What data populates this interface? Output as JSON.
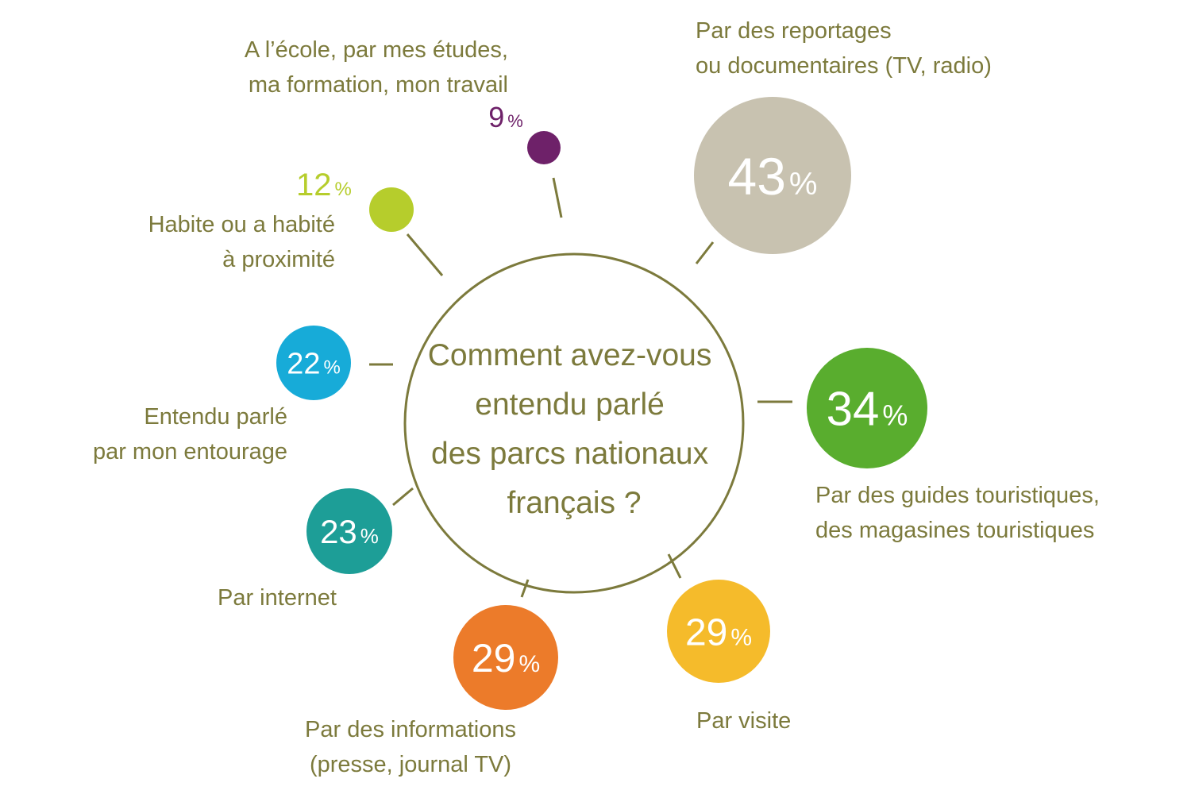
{
  "chart_data": {
    "type": "bubble",
    "title": "",
    "center_question": [
      "Comment avez-vous",
      "entendu parlé",
      "des parcs nationaux",
      "français ?"
    ],
    "unit": "%",
    "items": [
      {
        "id": "ecole",
        "value": 9,
        "display": "9",
        "label": [
          "A l’école, par mes études,",
          "ma formation, mon travail"
        ],
        "color": "#6e2169"
      },
      {
        "id": "reportages",
        "value": 43,
        "display": "43",
        "label": [
          "Par des reportages",
          "ou documentaires (TV, radio)"
        ],
        "color": "#c8c2b0"
      },
      {
        "id": "habite",
        "value": 12,
        "display": "12",
        "label": [
          "Habite ou a habité",
          "à proximité"
        ],
        "color": "#b6cd2c"
      },
      {
        "id": "entourage",
        "value": 22,
        "display": "22",
        "label": [
          "Entendu parlé",
          "par mon entourage"
        ],
        "color": "#17abd8"
      },
      {
        "id": "guides",
        "value": 34,
        "display": "34",
        "label": [
          "Par des guides touristiques,",
          "des magasines touristiques"
        ],
        "color": "#59ad2e"
      },
      {
        "id": "internet",
        "value": 23,
        "display": "23",
        "label": [
          "Par internet"
        ],
        "color": "#1d9e97"
      },
      {
        "id": "informations",
        "value": 29,
        "display": "29",
        "label": [
          "Par des informations",
          "(presse, journal TV)"
        ],
        "color": "#ec7b2a"
      },
      {
        "id": "visite",
        "value": 29,
        "display": "29",
        "label": [
          "Par visite"
        ],
        "color": "#f5bb2b"
      }
    ]
  }
}
